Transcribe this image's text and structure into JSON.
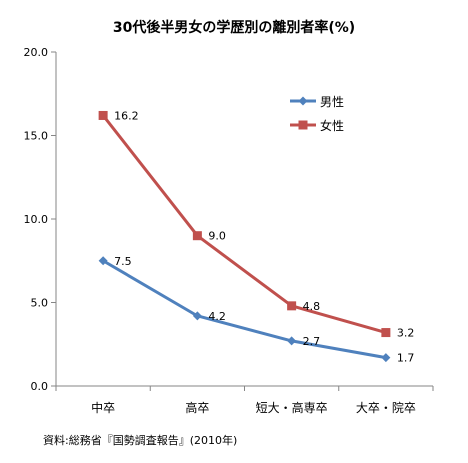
{
  "chart_data": {
    "type": "line",
    "title": "30代後半男女の学歴別の離別者率(%)",
    "categories": [
      "中卒",
      "高卒",
      "短大・高専卒",
      "大卒・院卒"
    ],
    "ylim": [
      0,
      20
    ],
    "yticks": [
      "0.0",
      "5.0",
      "10.0",
      "15.0",
      "20.0"
    ],
    "grid": false,
    "legend_position": "top-right",
    "series": [
      {
        "name": "男性",
        "color": "#4F81BD",
        "marker": "diamond",
        "values": [
          7.5,
          4.2,
          2.7,
          1.7
        ],
        "labels": [
          "7.5",
          "4.2",
          "2.7",
          "1.7"
        ]
      },
      {
        "name": "女性",
        "color": "#C0504D",
        "marker": "square",
        "values": [
          16.2,
          9.0,
          4.8,
          3.2
        ],
        "labels": [
          "16.2",
          "9.0",
          "4.8",
          "3.2"
        ]
      }
    ],
    "source": "資料:総務省『国勢調査報告』(2010年)"
  }
}
